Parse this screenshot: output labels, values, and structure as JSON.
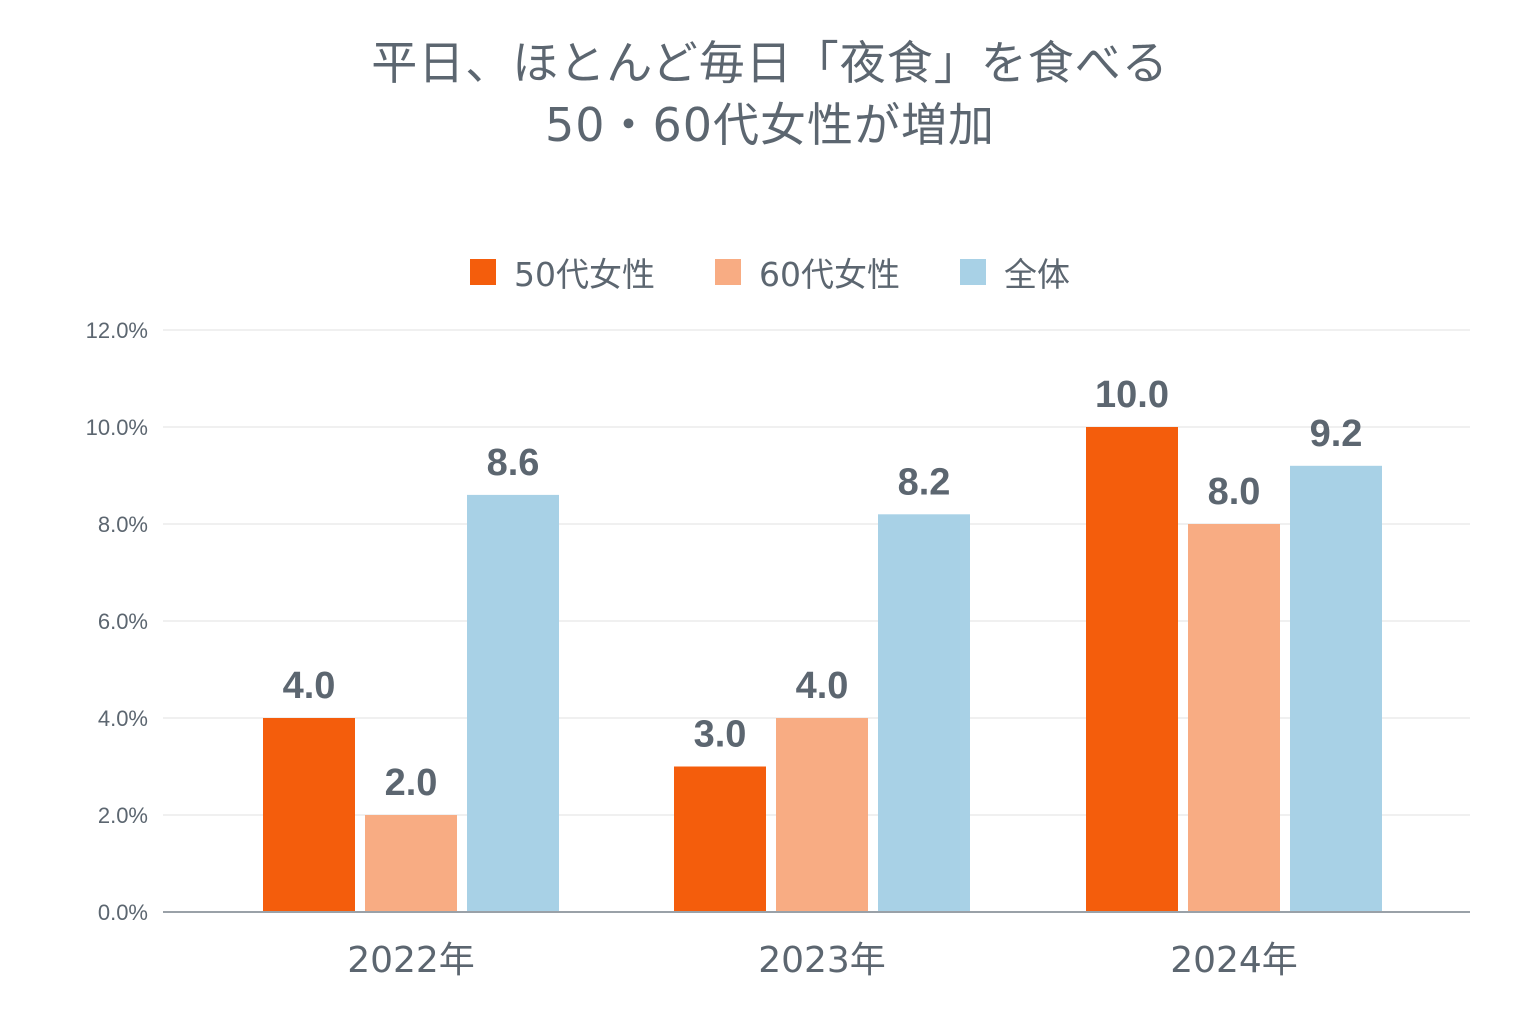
{
  "title_lines": [
    "平日、ほとんど毎日「夜食」を食べる",
    "50・60代女性が増加"
  ],
  "legend": [
    {
      "label": "50代女性",
      "color": "#F45D0C"
    },
    {
      "label": "60代女性",
      "color": "#F8AC83"
    },
    {
      "label": "全体",
      "color": "#A8D1E6"
    }
  ],
  "chart_data": {
    "type": "bar",
    "title": "平日、ほとんど毎日「夜食」を食べる 50・60代女性が増加",
    "categories": [
      "2022年",
      "2023年",
      "2024年"
    ],
    "series": [
      {
        "name": "50代女性",
        "values": [
          4.0,
          3.0,
          10.0
        ],
        "color": "#F45D0C"
      },
      {
        "name": "60代女性",
        "values": [
          2.0,
          4.0,
          8.0
        ],
        "color": "#F8AC83"
      },
      {
        "name": "全体",
        "values": [
          8.6,
          8.2,
          9.2
        ],
        "color": "#A8D1E6"
      }
    ],
    "value_labels": [
      [
        "4.0",
        "3.0",
        "10.0"
      ],
      [
        "2.0",
        "4.0",
        "8.0"
      ],
      [
        "8.6",
        "8.2",
        "9.2"
      ]
    ],
    "ylim": [
      0,
      12
    ],
    "yticks": [
      0,
      2,
      4,
      6,
      8,
      10,
      12
    ],
    "ytick_labels": [
      "0.0%",
      "2.0%",
      "4.0%",
      "6.0%",
      "8.0%",
      "10.0%",
      "12.0%"
    ],
    "xlabel": "",
    "ylabel": "",
    "grid": true,
    "legend_position": "top-center"
  }
}
